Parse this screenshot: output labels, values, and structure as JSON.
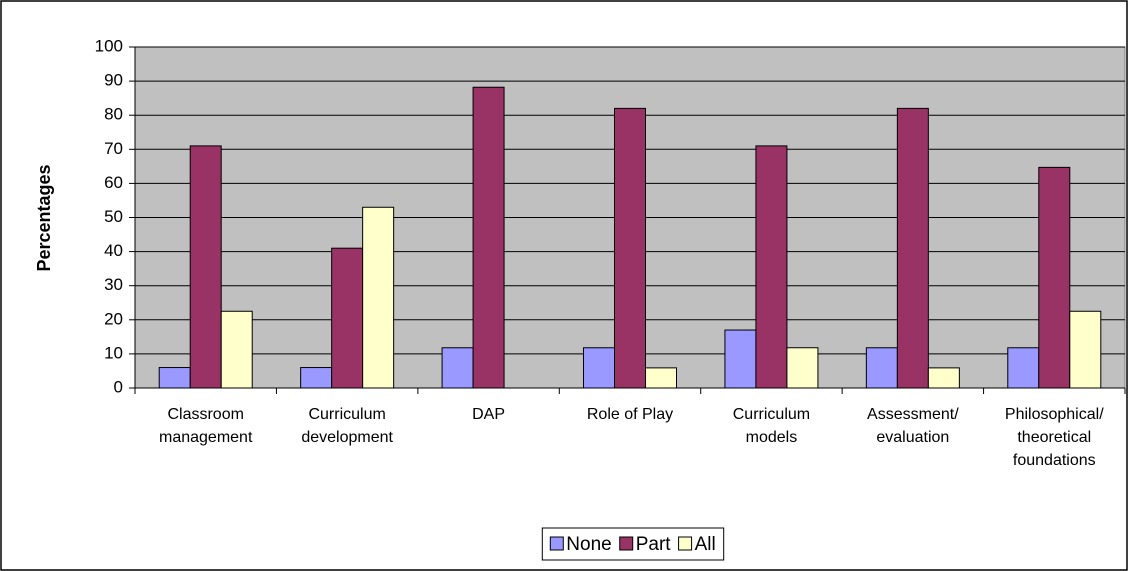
{
  "chart_data": {
    "type": "bar",
    "ylabel": "Percentages",
    "categories": [
      "Classroom management",
      "Curriculum development",
      "DAP",
      "Role of Play",
      "Curriculum models",
      "Assessment/ evaluation",
      "Philosophical/ theoretical foundations"
    ],
    "series": [
      {
        "name": "None",
        "color": "#9999ff",
        "values": [
          6,
          6,
          11.8,
          11.8,
          17,
          11.8,
          11.8
        ]
      },
      {
        "name": "Part",
        "color": "#993366",
        "values": [
          71,
          41,
          88.2,
          82,
          71,
          82,
          64.7
        ]
      },
      {
        "name": "All",
        "color": "#ffffcc",
        "values": [
          22.5,
          53,
          0,
          5.9,
          11.8,
          5.9,
          22.5
        ]
      }
    ],
    "ylim": [
      0,
      100
    ],
    "yticks": [
      0,
      10,
      20,
      30,
      40,
      50,
      60,
      70,
      80,
      90,
      100
    ],
    "grid": true,
    "plot_background": "#c0c0c0",
    "legend": "bottom"
  }
}
